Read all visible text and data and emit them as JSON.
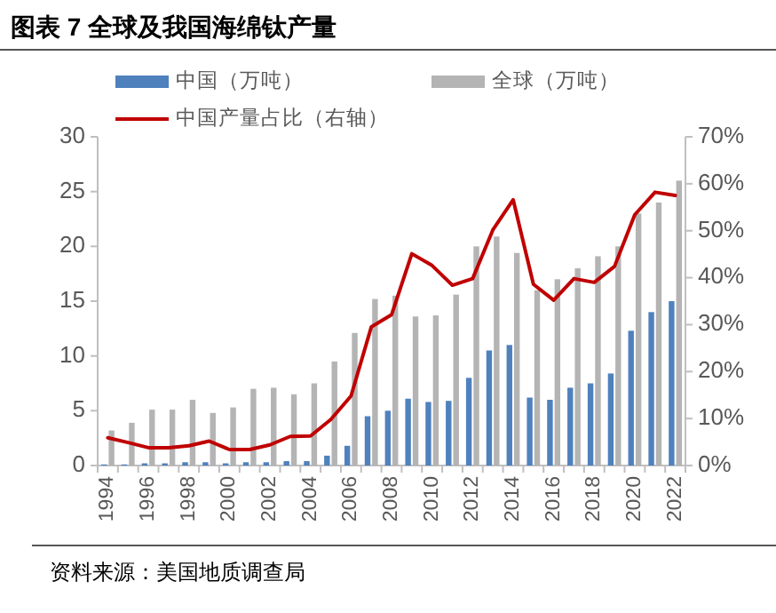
{
  "chart_data": {
    "type": "bar",
    "title": "图表 7  全球及我国海绵钛产量",
    "annotations": [
      "资料来源：美国地质调查局"
    ],
    "categories": [
      "1994",
      null,
      "1996",
      null,
      "1998",
      null,
      "2000",
      null,
      "2002",
      null,
      "2004",
      null,
      "2006",
      null,
      "2008",
      null,
      "2010",
      null,
      "2012",
      null,
      "2014",
      null,
      "2016",
      null,
      "2018",
      null,
      "2020",
      null,
      "2022"
    ],
    "series": [
      {
        "name": "中国（万吨）",
        "color": "#4f81bd",
        "values": [
          0.1,
          0.1,
          0.2,
          0.2,
          0.3,
          0.3,
          0.2,
          0.3,
          0.3,
          0.4,
          0.4,
          0.9,
          1.8,
          4.5,
          5.0,
          6.1,
          5.8,
          5.9,
          8.0,
          10.5,
          11.0,
          6.2,
          6.0,
          7.1,
          7.5,
          8.4,
          12.3,
          14.0,
          15.0
        ]
      },
      {
        "name": "全球（万吨）",
        "color": "#b4b4b4",
        "values": [
          3.2,
          3.9,
          5.1,
          5.1,
          6.0,
          4.8,
          5.3,
          7.0,
          7.1,
          6.5,
          7.5,
          9.5,
          12.1,
          15.2,
          15.5,
          13.6,
          13.7,
          15.6,
          20.0,
          20.9,
          19.4,
          16.0,
          17.0,
          18.0,
          19.1,
          20.0,
          23.0,
          24.0,
          26.0
        ]
      },
      {
        "name": "中国产量占比（右轴）",
        "type": "line",
        "axis": "y2",
        "color": "#c00000",
        "values": [
          5.9,
          4.9,
          3.8,
          3.8,
          4.2,
          5.2,
          3.4,
          3.4,
          4.4,
          6.2,
          6.3,
          9.8,
          14.8,
          29.5,
          32.1,
          45.1,
          42.6,
          38.4,
          39.8,
          50.2,
          56.6,
          38.6,
          35.2,
          39.8,
          39.0,
          42.4,
          53.4,
          58.2,
          57.5
        ]
      }
    ],
    "ylim": [
      0,
      30
    ],
    "yticks": [
      0,
      5,
      10,
      15,
      20,
      25,
      30
    ],
    "y2lim": [
      0,
      70
    ],
    "y2ticks": [
      {
        "value": 0,
        "label": "0%"
      },
      {
        "value": 10,
        "label": "10%"
      },
      {
        "value": 20,
        "label": "20%"
      },
      {
        "value": 30,
        "label": "30%"
      },
      {
        "value": 40,
        "label": "40%"
      },
      {
        "value": 50,
        "label": "50%"
      },
      {
        "value": 60,
        "label": "60%"
      },
      {
        "value": 70,
        "label": "70%"
      }
    ],
    "legend": "top"
  }
}
